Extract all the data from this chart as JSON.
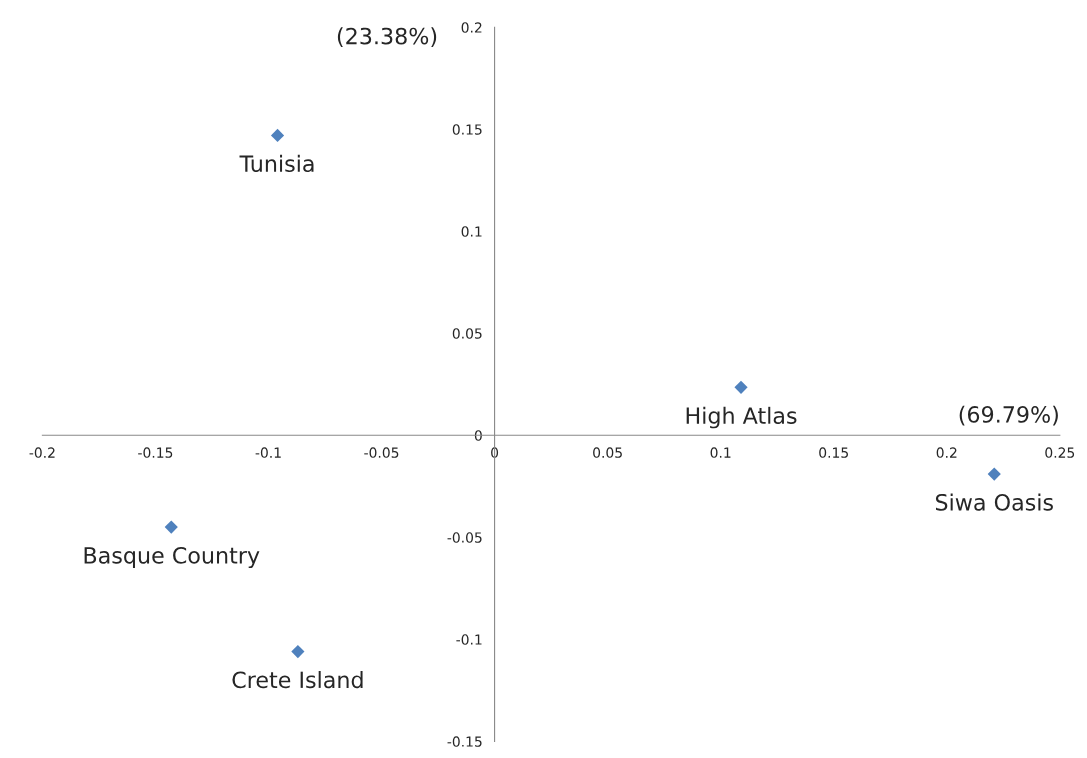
{
  "chart_data": {
    "type": "scatter",
    "x": [
      -0.096,
      0.109,
      0.221,
      -0.143,
      -0.087
    ],
    "values": [
      0.147,
      0.0235,
      -0.019,
      -0.045,
      -0.106
    ],
    "color": "#4f81bd",
    "marker": "diamond",
    "xlabel": "(69.79%)",
    "ylabel": "(23.38%)",
    "annotations": [
      {
        "text": "Tunisia",
        "x": -0.096,
        "y": 0.147
      },
      {
        "text": "High Atlas",
        "x": 0.109,
        "y": 0.0235
      },
      {
        "text": "Siwa Oasis",
        "x": 0.221,
        "y": -0.019
      },
      {
        "text": "Basque Country",
        "x": -0.143,
        "y": -0.045
      },
      {
        "text": "Crete Island",
        "x": -0.087,
        "y": -0.106
      }
    ],
    "xlim": [
      -0.2,
      0.25
    ],
    "ylim": [
      -0.15,
      0.2
    ],
    "xticks": [
      -0.2,
      -0.15,
      -0.1,
      -0.05,
      0,
      0.05,
      0.1,
      0.15,
      0.2,
      0.25
    ],
    "yticks": [
      -0.15,
      -0.1,
      -0.05,
      0,
      0.05,
      0.1,
      0.15,
      0.2
    ],
    "grid": false,
    "legend": false
  }
}
